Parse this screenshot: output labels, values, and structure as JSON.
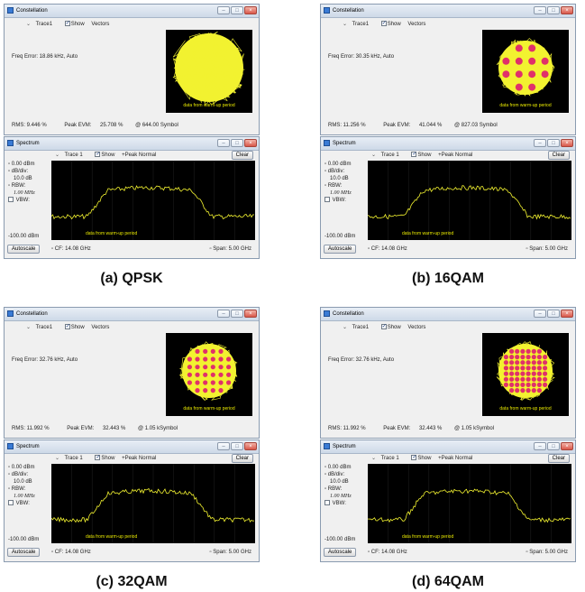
{
  "colors": {
    "plot_bg": "#000000",
    "trace": "#f2f230",
    "symbol": "#e0306a",
    "note": "#e8e800"
  },
  "panels": [
    {
      "caption": "(a) QPSK",
      "constellation": {
        "title": "Constellation",
        "trace": "Trace1",
        "show": "Show",
        "vectors": "Vectors",
        "freq_error": "Freq Error: 18.86 kHz, Auto",
        "rms": "RMS: 9.446 %",
        "peak_evm": "Peak EVM:",
        "peak_val": "25.708 %",
        "symbol": "@ 644.00 Symbol",
        "note": "data from warm-up period",
        "grid": 2
      },
      "spectrum": {
        "title": "Spectrum",
        "trace": "Trace 1",
        "show": "Show",
        "peak": "+Peak Normal",
        "clear": "Clear",
        "ref": "0.00 dBm",
        "dbdiv": "dB/div:",
        "dbval": "10.0 dB",
        "rbw": "RBW:",
        "rbwval": "1.00 MHz",
        "vbw": "VBW:",
        "bottom": "-100.00 dBm",
        "autoscale": "Autoscale",
        "cf": "CF: 14.08 GHz",
        "span": "Span: 5.00 GHz",
        "note": "data from warm-up period"
      }
    },
    {
      "caption": "(b) 16QAM",
      "constellation": {
        "title": "Constellation",
        "trace": "Trace1",
        "show": "Show",
        "vectors": "Vectors",
        "freq_error": "Freq Error: 30.35 kHz, Auto",
        "rms": "RMS: 11.256 %",
        "peak_evm": "Peak EVM:",
        "peak_val": "41.044 %",
        "symbol": "@ 827.03 Symbol",
        "note": "data from warm-up period",
        "grid": 4
      },
      "spectrum": {
        "title": "Spectrum",
        "trace": "Trace 1",
        "show": "Show",
        "peak": "+Peak Normal",
        "clear": "Clear",
        "ref": "0.00 dBm",
        "dbdiv": "dB/div:",
        "dbval": "10.0 dB",
        "rbw": "RBW:",
        "rbwval": "1.00 MHz",
        "vbw": "VBW:",
        "bottom": "-100.00 dBm",
        "autoscale": "Autoscale",
        "cf": "CF: 14.08 GHz",
        "span": "Span: 5.00 GHz",
        "note": "data from warm-up period"
      }
    },
    {
      "caption": "(c) 32QAM",
      "constellation": {
        "title": "Constellation",
        "trace": "Trace1",
        "show": "Show",
        "vectors": "Vectors",
        "freq_error": "Freq Error: 32.76 kHz, Auto",
        "rms": "RMS: 11.992 %",
        "peak_evm": "Peak EVM:",
        "peak_val": "32.443 %",
        "symbol": "@ 1.05 kSymbol",
        "note": "data from warm-up period",
        "grid": 6
      },
      "spectrum": {
        "title": "Spectrum",
        "trace": "Trace 1",
        "show": "Show",
        "peak": "+Peak Normal",
        "clear": "Clear",
        "ref": "0.00 dBm",
        "dbdiv": "dB/div:",
        "dbval": "10.0 dB",
        "rbw": "RBW:",
        "rbwval": "1.00 MHz",
        "vbw": "VBW:",
        "bottom": "-100.00 dBm",
        "autoscale": "Autoscale",
        "cf": "CF: 14.08 GHz",
        "span": "Span: 5.00 GHz",
        "note": "data from warm-up period"
      }
    },
    {
      "caption": "(d) 64QAM",
      "constellation": {
        "title": "Constellation",
        "trace": "Trace1",
        "show": "Show",
        "vectors": "Vectors",
        "freq_error": "Freq Error: 32.76 kHz, Auto",
        "rms": "RMS: 11.992 %",
        "peak_evm": "Peak EVM:",
        "peak_val": "32.443 %",
        "symbol": "@ 1.05 kSymbol",
        "note": "data from warm-up period",
        "grid": 8
      },
      "spectrum": {
        "title": "Spectrum",
        "trace": "Trace 1",
        "show": "Show",
        "peak": "+Peak Normal",
        "clear": "Clear",
        "ref": "0.00 dBm",
        "dbdiv": "dB/div:",
        "dbval": "10.0 dB",
        "rbw": "RBW:",
        "rbwval": "1.00 MHz",
        "vbw": "VBW:",
        "bottom": "-100.00 dBm",
        "autoscale": "Autoscale",
        "cf": "CF: 14.08 GHz",
        "span": "Span: 5.00 GHz",
        "note": "data from warm-up period"
      }
    }
  ]
}
